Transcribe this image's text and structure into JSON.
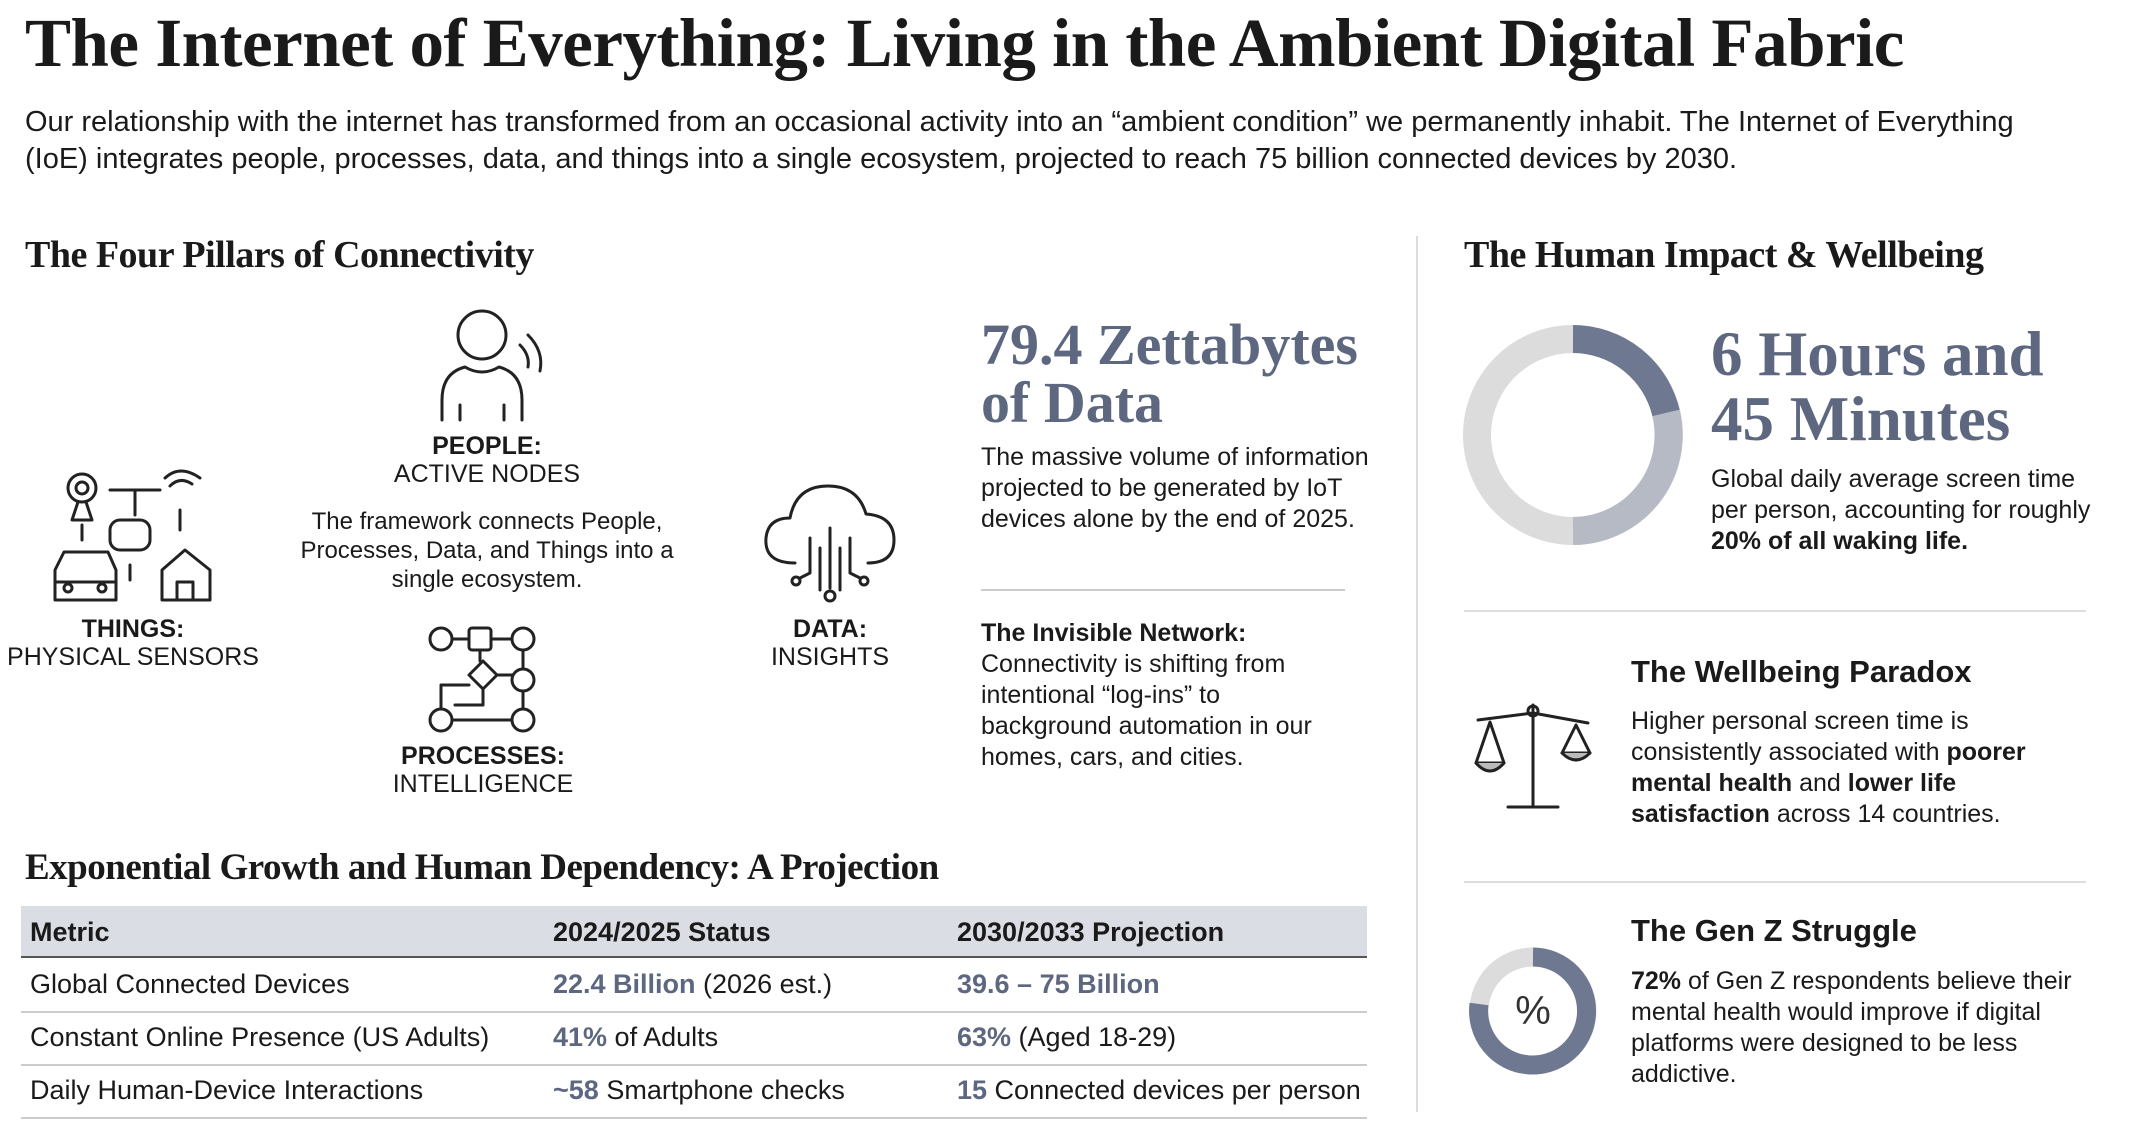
{
  "header": {
    "title": "The Internet of Everything: Living in the Ambient Digital Fabric",
    "intro": "Our relationship with the internet has transformed from an occasional activity into an “ambient condition” we permanently inhabit. The Internet of Everything (IoE) integrates people, processes, data, and things into a single ecosystem, projected to reach 75 billion connected devices by 2030."
  },
  "pillars": {
    "heading": "The Four Pillars of Connectivity",
    "people": {
      "label": "PEOPLE:",
      "sublabel": "ACTIVE NODES"
    },
    "description": "The framework connects People, Processes, Data, and Things into a single ecosystem.",
    "things": {
      "label": "THINGS:",
      "sublabel": "PHYSICAL SENSORS"
    },
    "processes": {
      "label": "PROCESSES:",
      "sublabel": "INTELLIGENCE"
    },
    "data": {
      "label": "DATA:",
      "sublabel": "INSIGHTS"
    }
  },
  "data_stat": {
    "headline": [
      "79.4 Zettabytes",
      "of Data"
    ],
    "text": "The massive volume of information projected to be generated by IoT devices alone by the end of 2025."
  },
  "invisible_network": {
    "title": "The Invisible Network:",
    "text": "Connectivity is shifting from intentional “log-ins” to background automation in our homes, cars, and cities."
  },
  "table": {
    "heading": "Exponential Growth and Human Dependency: A Projection",
    "columns": [
      "Metric",
      "2024/2025 Status",
      "2030/2033 Projection"
    ],
    "rows": [
      [
        [
          {
            "text": "Global Connected Devices"
          }
        ],
        [
          {
            "text": "22.4 Billion",
            "accent": true
          },
          {
            "text": " (2026 est.)"
          }
        ],
        [
          {
            "text": "39.6 – 75 Billion",
            "accent": true
          }
        ]
      ],
      [
        [
          {
            "text": "Constant Online Presence (US Adults)"
          }
        ],
        [
          {
            "text": "41%",
            "accent": true
          },
          {
            "text": " of Adults"
          }
        ],
        [
          {
            "text": "63%",
            "accent": true
          },
          {
            "text": " (Aged 18-29)"
          }
        ]
      ],
      [
        [
          {
            "text": "Daily Human-Device Interactions"
          }
        ],
        [
          {
            "text": "~58",
            "accent": true
          },
          {
            "text": " Smartphone checks"
          }
        ],
        [
          {
            "text": "15",
            "accent": true
          },
          {
            "text": " Connected devices per person"
          }
        ]
      ]
    ]
  },
  "impact": {
    "heading": "The Human Impact & Wellbeing",
    "screen_time": {
      "headline": [
        "6 Hours and",
        "45 Minutes"
      ],
      "text": [
        {
          "text": "Global daily average screen time per person, accounting for roughly "
        },
        {
          "text": "20% of all waking life.",
          "bold": true
        }
      ]
    },
    "wellbeing": {
      "title": "The Wellbeing Paradox",
      "text": [
        {
          "text": "Higher personal screen time is consistently associated with "
        },
        {
          "text": "poorer mental health",
          "bold": true
        },
        {
          "text": " and "
        },
        {
          "text": "lower life satisfaction",
          "bold": true
        },
        {
          "text": " across 14 countries."
        }
      ]
    },
    "gen_z": {
      "title": "The Gen Z Struggle",
      "text": [
        {
          "text": "72%",
          "bold": true
        },
        {
          "text": " of Gen Z respondents believe their mental health would improve if digital platforms were designed to be less addictive."
        }
      ]
    }
  }
}
